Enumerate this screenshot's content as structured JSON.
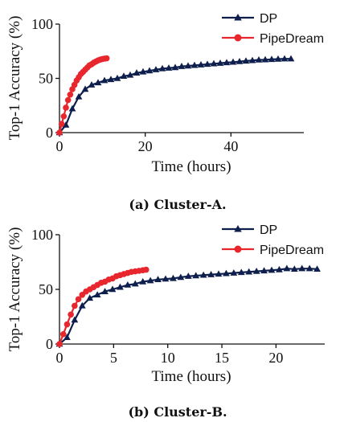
{
  "colors": {
    "dp": "#0e1f4d",
    "pipedream": "#e8262d",
    "axis": "#111111"
  },
  "chart_data": [
    {
      "type": "line",
      "caption": "(a) Cluster-A.",
      "xlabel": "Time (hours)",
      "ylabel": "Top-1 Accuracy (%)",
      "xlim": [
        0,
        57
      ],
      "ylim": [
        0,
        100
      ],
      "xticks": [
        0,
        20,
        40
      ],
      "yticks": [
        0,
        50,
        100
      ],
      "legend": "top-right",
      "series": [
        {
          "name": "DP",
          "marker": "triangle",
          "x": [
            0,
            1.5,
            3,
            4.5,
            6,
            7.5,
            9,
            10.5,
            12,
            13.5,
            15,
            16.5,
            18,
            19.5,
            21,
            22.5,
            24,
            25.5,
            27,
            28.5,
            30,
            31.5,
            33,
            34.5,
            36,
            37.5,
            39,
            40.5,
            42,
            43.5,
            45,
            46.5,
            48,
            49.5,
            51,
            52.5,
            54
          ],
          "y": [
            0,
            7,
            22,
            33,
            40,
            44,
            46,
            48,
            49,
            50,
            52,
            53,
            55,
            56,
            57,
            58,
            59,
            59.5,
            60,
            61,
            61.5,
            62,
            62.5,
            63,
            63.5,
            64,
            64.5,
            65,
            65.5,
            66,
            66.5,
            67,
            67.2,
            67.5,
            67.8,
            68,
            68
          ]
        },
        {
          "name": "PipeDream",
          "marker": "circle",
          "x": [
            0,
            0.5,
            1,
            1.5,
            2,
            2.5,
            3,
            3.5,
            4,
            4.5,
            5,
            5.5,
            6,
            6.5,
            7,
            7.5,
            8,
            8.5,
            9,
            9.5,
            10,
            10.5,
            11
          ],
          "y": [
            0,
            8,
            15,
            23,
            30,
            35,
            40,
            44,
            48,
            51,
            54,
            56,
            58,
            60,
            62,
            63,
            64.5,
            65.5,
            66.5,
            67.3,
            67.8,
            68.2,
            68.5
          ]
        }
      ]
    },
    {
      "type": "line",
      "caption": "(b) Cluster-B.",
      "xlabel": "Time (hours)",
      "ylabel": "Top-1 Accuracy (%)",
      "xlim": [
        0,
        24.5
      ],
      "ylim": [
        0,
        100
      ],
      "xticks": [
        0,
        5,
        10,
        15,
        20
      ],
      "yticks": [
        0,
        50,
        100
      ],
      "legend": "top-right",
      "series": [
        {
          "name": "DP",
          "marker": "triangle",
          "x": [
            0,
            0.7,
            1.4,
            2.1,
            2.8,
            3.5,
            4.2,
            4.9,
            5.6,
            6.3,
            7,
            7.7,
            8.4,
            9.1,
            9.8,
            10.5,
            11.2,
            11.9,
            12.6,
            13.3,
            14,
            14.7,
            15.4,
            16.1,
            16.8,
            17.5,
            18.2,
            18.9,
            19.6,
            20.3,
            21,
            21.7,
            22.4,
            23.1,
            23.8
          ],
          "y": [
            0,
            6,
            22,
            35,
            42,
            45,
            48,
            50,
            52,
            54,
            55,
            57,
            58,
            59,
            59.5,
            60,
            61,
            62,
            62.5,
            63,
            63.5,
            64,
            64.5,
            65,
            65.5,
            66,
            66.5,
            67,
            67.5,
            68,
            69,
            68.5,
            69,
            69,
            68.5
          ]
        },
        {
          "name": "PipeDream",
          "marker": "circle",
          "x": [
            0,
            0.35,
            0.7,
            1.05,
            1.4,
            1.75,
            2.1,
            2.45,
            2.8,
            3.15,
            3.5,
            3.85,
            4.2,
            4.55,
            4.9,
            5.25,
            5.6,
            5.95,
            6.3,
            6.65,
            7,
            7.35,
            7.7,
            8.0
          ],
          "y": [
            0,
            9,
            18,
            27,
            35,
            41,
            45,
            48,
            50,
            52,
            54,
            56,
            57,
            59,
            60,
            62,
            63,
            64,
            65,
            66,
            66.5,
            67,
            67.5,
            68
          ]
        }
      ]
    }
  ]
}
